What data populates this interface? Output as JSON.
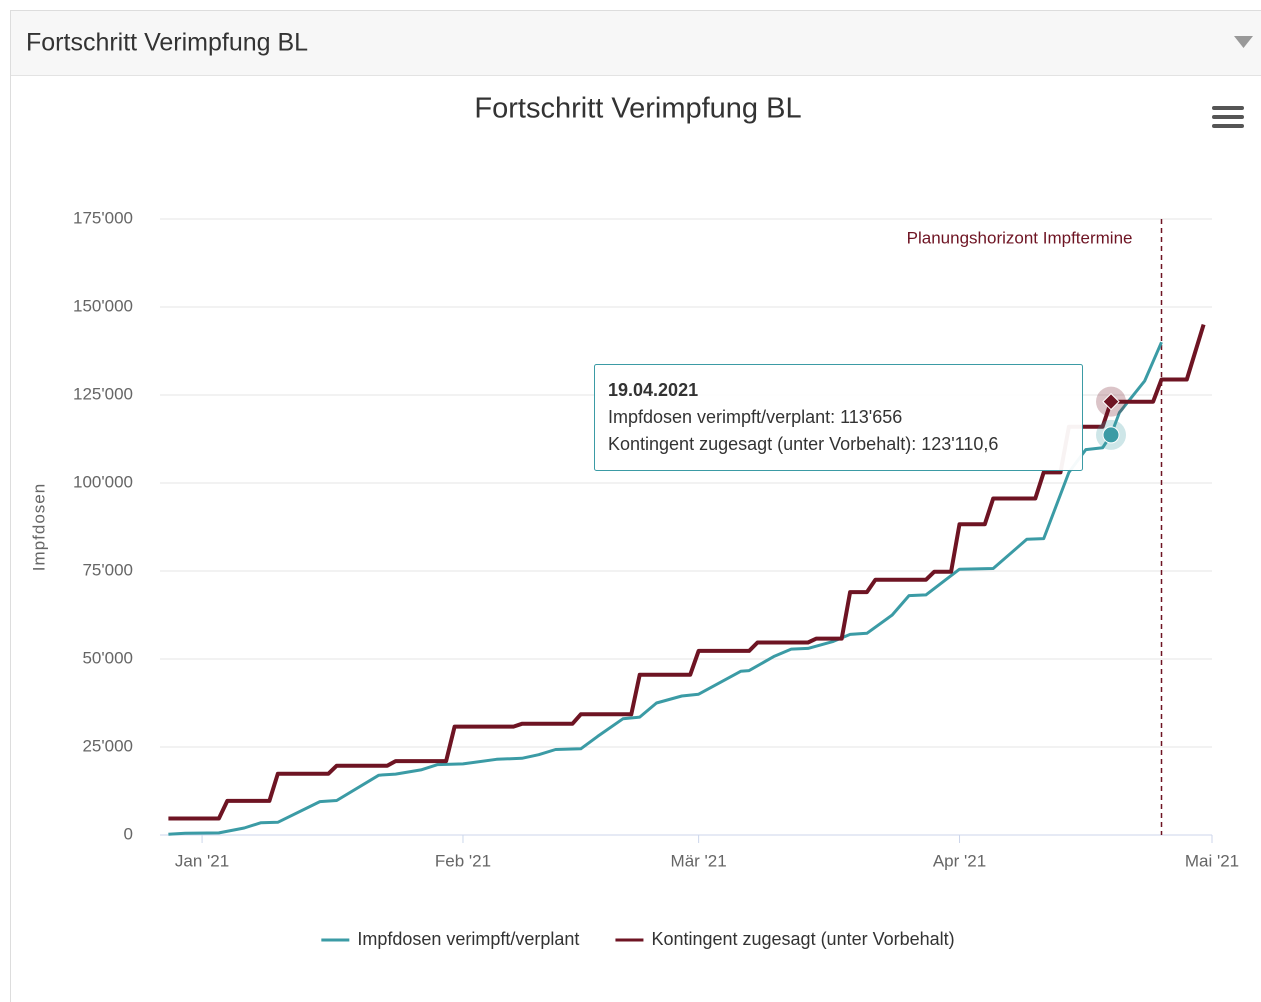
{
  "panel_title": "Fortschritt Verimpfung BL",
  "chart_data": {
    "type": "line",
    "title": "Fortschritt Verimpfung BL",
    "y_label": "Impfdosen",
    "xlim": [
      "2020-12-27",
      "2021-05-01"
    ],
    "xticks": [
      {
        "value": "2021-01-01",
        "label": "Jan '21"
      },
      {
        "value": "2021-02-01",
        "label": "Feb '21"
      },
      {
        "value": "2021-03-01",
        "label": "Mär '21"
      },
      {
        "value": "2021-04-01",
        "label": "Apr '21"
      },
      {
        "value": "2021-05-01",
        "label": "Mai '21"
      }
    ],
    "ylim": [
      0,
      175000
    ],
    "yticks": [
      0,
      {
        "value": 25000,
        "label": "25'000"
      },
      {
        "value": 50000,
        "label": "50'000"
      },
      {
        "value": 75000,
        "label": "75'000"
      },
      {
        "value": 100000,
        "label": "100'000"
      },
      {
        "value": 125000,
        "label": "125'000"
      },
      {
        "value": 150000,
        "label": "150'000"
      },
      {
        "value": 175000,
        "label": "175'000"
      }
    ],
    "grid": true,
    "legend": "bottom",
    "plot_line": {
      "x": "2021-04-25",
      "label": "Planungshorizont Impftermine",
      "color": "#6e1423"
    },
    "series": [
      {
        "name": "Impfdosen verimpft/verplant",
        "color": "#3b9ba5",
        "x": [
          "2020-12-28",
          "2020-12-30",
          "2021-01-03",
          "2021-01-06",
          "2021-01-08",
          "2021-01-10",
          "2021-01-15",
          "2021-01-17",
          "2021-01-22",
          "2021-01-24",
          "2021-01-27",
          "2021-01-29",
          "2021-02-01",
          "2021-02-05",
          "2021-02-08",
          "2021-02-10",
          "2021-02-12",
          "2021-02-15",
          "2021-02-17",
          "2021-02-20",
          "2021-02-22",
          "2021-02-24",
          "2021-02-27",
          "2021-03-01",
          "2021-03-06",
          "2021-03-07",
          "2021-03-10",
          "2021-03-12",
          "2021-03-14",
          "2021-03-17",
          "2021-03-19",
          "2021-03-21",
          "2021-03-24",
          "2021-03-26",
          "2021-03-28",
          "2021-04-01",
          "2021-04-05",
          "2021-04-09",
          "2021-04-11",
          "2021-04-14",
          "2021-04-16",
          "2021-04-18",
          "2021-04-19",
          "2021-04-20",
          "2021-04-23",
          "2021-04-25"
        ],
        "values": [
          200,
          500,
          600,
          2000,
          3500,
          3600,
          9500,
          9800,
          17000,
          17300,
          18500,
          20000,
          20200,
          21500,
          21800,
          22800,
          24300,
          24500,
          28000,
          33000,
          33500,
          37500,
          39500,
          40000,
          46500,
          46700,
          50800,
          52800,
          53000,
          55000,
          57000,
          57300,
          62500,
          68000,
          68200,
          75500,
          75700,
          84000,
          84200,
          103000,
          109500,
          110000,
          113656,
          120000,
          129000,
          140000
        ]
      },
      {
        "name": "Kontingent zugesagt (unter Vorbehalt)",
        "color": "#6e1423",
        "x": [
          "2020-12-28",
          "2021-01-03",
          "2021-01-04",
          "2021-01-09",
          "2021-01-10",
          "2021-01-16",
          "2021-01-17",
          "2021-01-23",
          "2021-01-24",
          "2021-01-30",
          "2021-01-31",
          "2021-02-07",
          "2021-02-08",
          "2021-02-14",
          "2021-02-15",
          "2021-02-21",
          "2021-02-22",
          "2021-02-28",
          "2021-03-01",
          "2021-03-07",
          "2021-03-08",
          "2021-03-14",
          "2021-03-15",
          "2021-03-18",
          "2021-03-19",
          "2021-03-21",
          "2021-03-22",
          "2021-03-28",
          "2021-03-29",
          "2021-03-31",
          "2021-04-01",
          "2021-04-04",
          "2021-04-05",
          "2021-04-10",
          "2021-04-11",
          "2021-04-13",
          "2021-04-14",
          "2021-04-18",
          "2021-04-19",
          "2021-04-24",
          "2021-04-25",
          "2021-04-28",
          "2021-04-30"
        ],
        "values": [
          4700,
          4700,
          9700,
          9700,
          17400,
          17400,
          19700,
          19700,
          21000,
          21000,
          30800,
          30800,
          31600,
          31600,
          34300,
          34300,
          45500,
          45500,
          52300,
          52300,
          54700,
          54700,
          55800,
          55800,
          69000,
          69000,
          72500,
          72500,
          74800,
          74800,
          88300,
          88300,
          95600,
          95600,
          103000,
          103000,
          116000,
          116000,
          123110.6,
          123110.6,
          129400,
          129400,
          145000
        ]
      }
    ],
    "tooltip": {
      "title": "19.04.2021",
      "lines": [
        "Impfdosen verimpft/verplant: 113'656",
        "Kontingent zugesagt (unter Vorbehalt): 123'110,6"
      ]
    }
  }
}
